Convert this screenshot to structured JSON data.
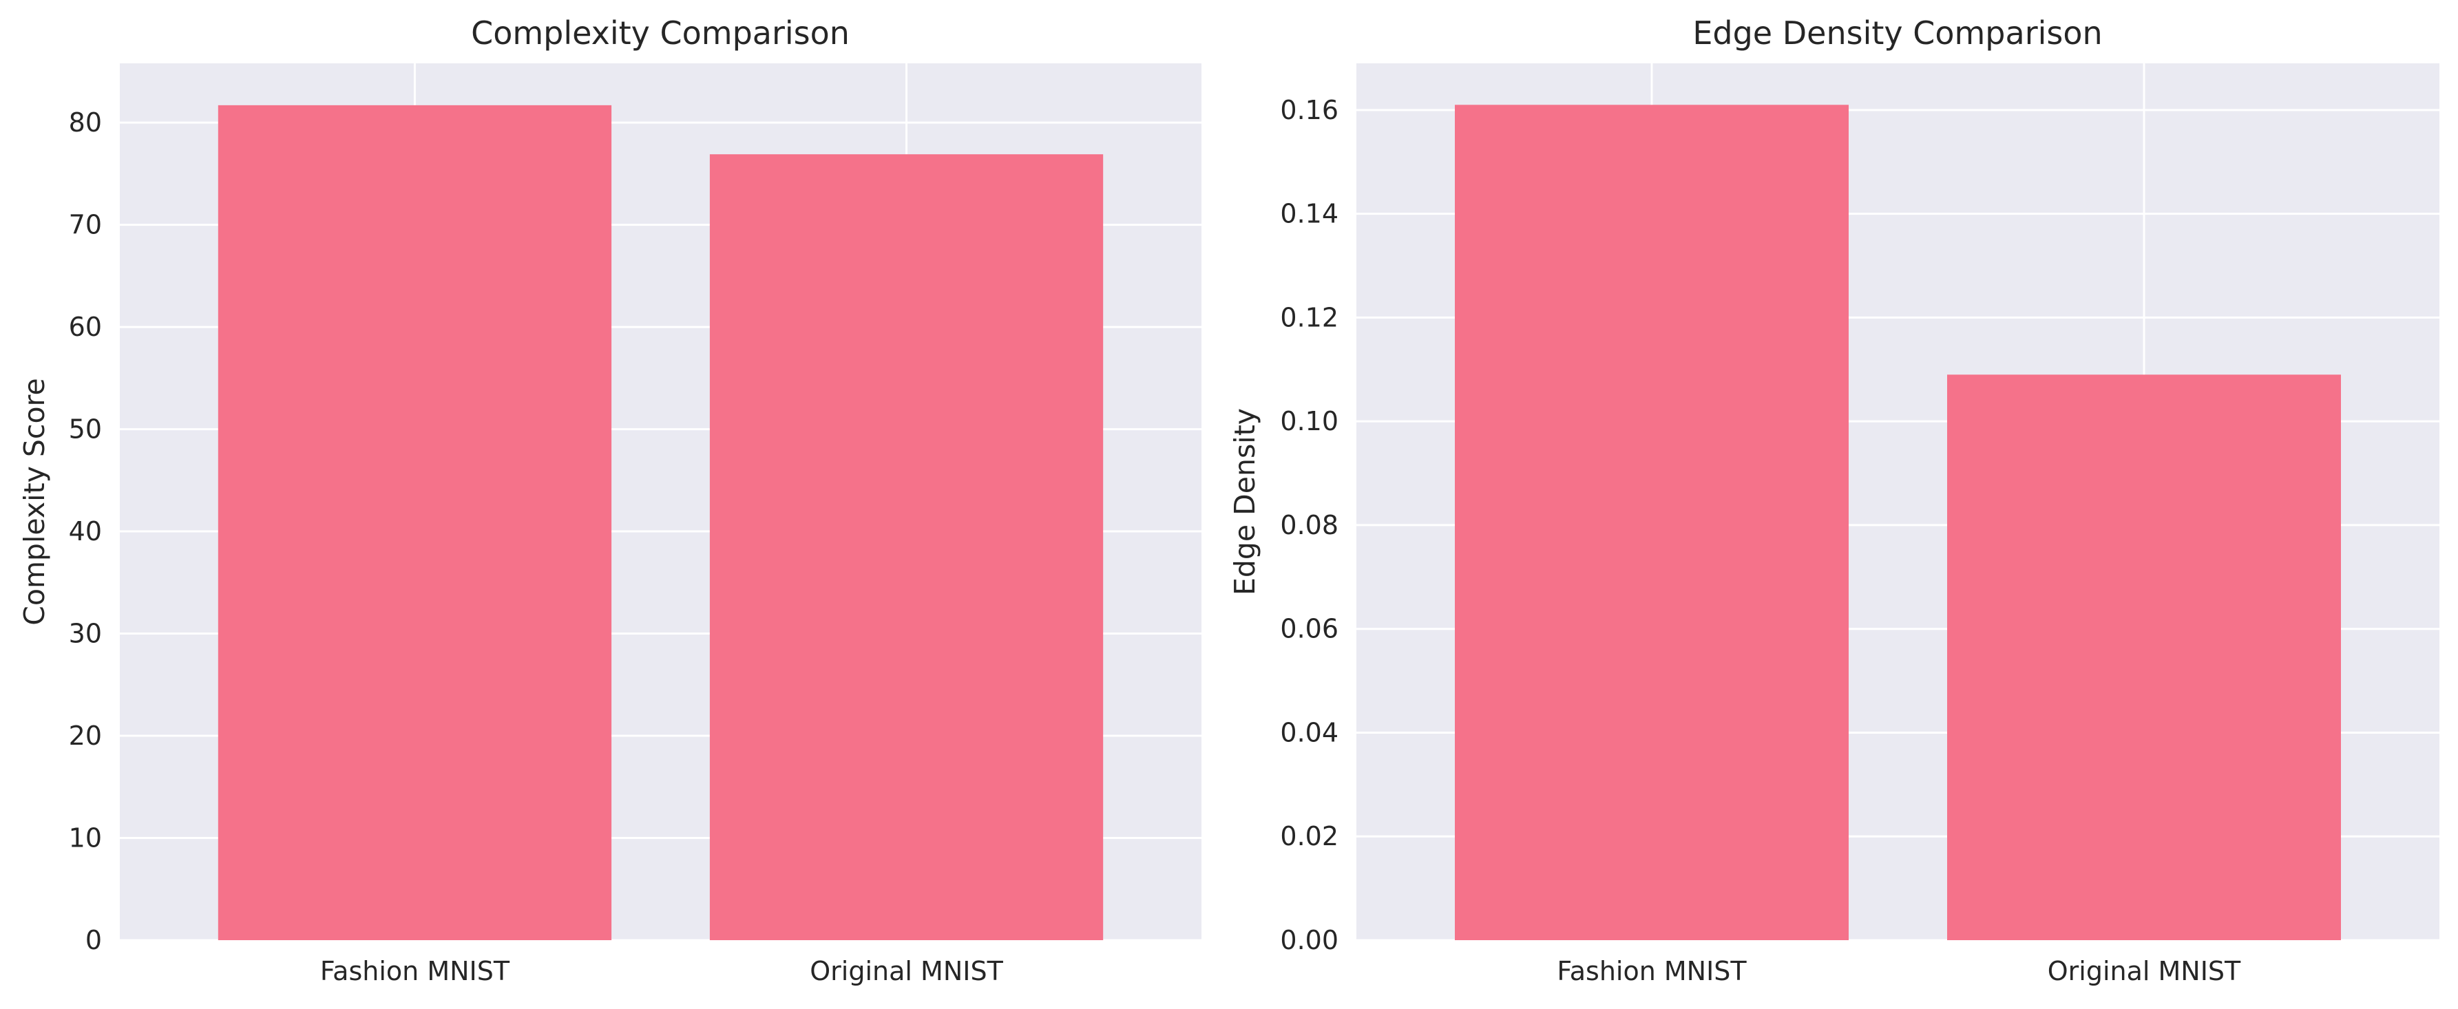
{
  "chart_data": [
    {
      "type": "bar",
      "title": "Complexity Comparison",
      "xlabel": "",
      "ylabel": "Complexity Score",
      "categories": [
        "Fashion MNIST",
        "Original MNIST"
      ],
      "values": [
        81.7,
        76.9
      ],
      "ylim": [
        0,
        85.8
      ],
      "yticks": [
        0,
        10,
        20,
        30,
        40,
        50,
        60,
        70,
        80
      ],
      "ytick_labels": [
        "0",
        "10",
        "20",
        "30",
        "40",
        "50",
        "60",
        "70",
        "80"
      ],
      "grid": true,
      "bar_color": "#f5728a",
      "background_color": "#eaeaf2"
    },
    {
      "type": "bar",
      "title": "Edge Density Comparison",
      "xlabel": "",
      "ylabel": "Edge Density",
      "categories": [
        "Fashion MNIST",
        "Original MNIST"
      ],
      "values": [
        0.161,
        0.109
      ],
      "ylim": [
        0,
        0.169
      ],
      "yticks": [
        0,
        0.02,
        0.04,
        0.06,
        0.08,
        0.1,
        0.12,
        0.14,
        0.16
      ],
      "ytick_labels": [
        "0.00",
        "0.02",
        "0.04",
        "0.06",
        "0.08",
        "0.10",
        "0.12",
        "0.14",
        "0.16"
      ],
      "grid": true,
      "bar_color": "#f5728a",
      "background_color": "#eaeaf2"
    }
  ]
}
